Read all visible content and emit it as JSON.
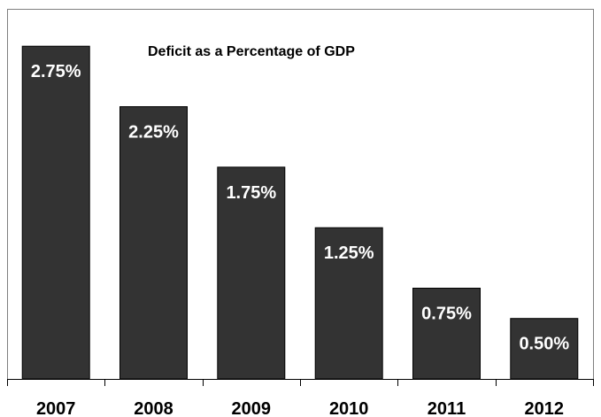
{
  "chart_data": {
    "type": "bar",
    "title": "Deficit as a Percentage of GDP",
    "xlabel": "",
    "ylabel": "",
    "categories": [
      "2007",
      "2008",
      "2009",
      "2010",
      "2011",
      "2012"
    ],
    "values": [
      2.75,
      2.25,
      1.75,
      1.25,
      0.75,
      0.5
    ],
    "data_labels": [
      "2.75%",
      "2.25%",
      "1.75%",
      "1.25%",
      "0.75%",
      "0.50%"
    ],
    "ylim": [
      0,
      3.0
    ],
    "grid": false,
    "legend": "none",
    "colors": {
      "bar": "#333333",
      "bar_label": "#ffffff",
      "frame": "#808080"
    }
  }
}
